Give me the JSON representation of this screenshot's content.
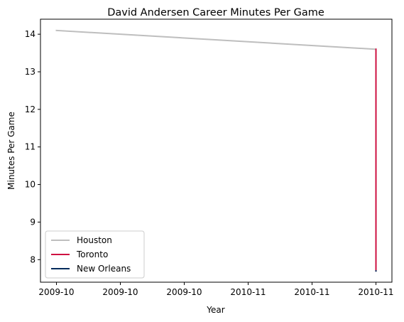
{
  "chart_data": {
    "type": "line",
    "title": "David Andersen Career Minutes Per Game",
    "xlabel": "Year",
    "ylabel": "Minutes Per Game",
    "xlim": [
      -0.1,
      2.1
    ],
    "ylim": [
      7.4,
      14.4
    ],
    "x_ticks": [
      {
        "value": 0,
        "label": "2009-10"
      },
      {
        "value": 0.4,
        "label": "2009-10"
      },
      {
        "value": 0.8,
        "label": "2009-10"
      },
      {
        "value": 1.2,
        "label": "2010-11"
      },
      {
        "value": 1.6,
        "label": "2010-11"
      },
      {
        "value": 2.0,
        "label": "2010-11"
      }
    ],
    "y_ticks": [
      8,
      9,
      10,
      11,
      12,
      13,
      14
    ],
    "grid": false,
    "legend_position": "lower-left",
    "series": [
      {
        "name": "Houston",
        "color": "#bebebe",
        "points": [
          {
            "x": 0,
            "y": 14.1
          },
          {
            "x": 2.0,
            "y": 13.6
          }
        ]
      },
      {
        "name": "Toronto",
        "color": "#ce1141",
        "points": [
          {
            "x": 2.0,
            "y": 13.6
          },
          {
            "x": 2.0,
            "y": 7.7
          }
        ]
      },
      {
        "name": "New Orleans",
        "color": "#002b5c",
        "points": [
          {
            "x": 2.0,
            "y": 7.7
          },
          {
            "x": 2.0,
            "y": 7.7
          }
        ]
      }
    ]
  }
}
